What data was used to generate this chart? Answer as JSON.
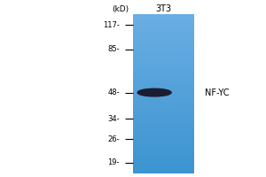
{
  "kd_label": "(kD)",
  "lane_label": "3T3",
  "band_label": "NF-YC",
  "mw_markers": [
    117,
    85,
    48,
    34,
    26,
    19
  ],
  "band_mw": 48,
  "lane_color": "#5b9fd4",
  "band_color": "#1c1c30",
  "background_color": "#ffffff",
  "fig_width": 3.0,
  "fig_height": 2.0,
  "dpi": 100
}
